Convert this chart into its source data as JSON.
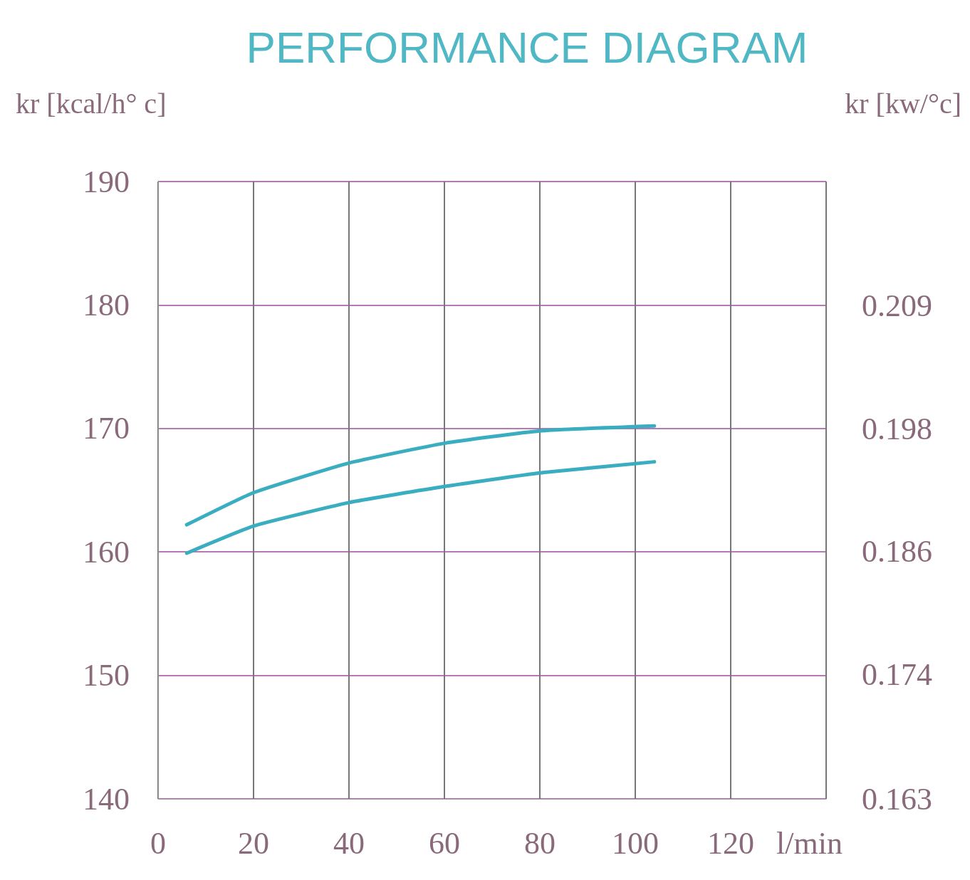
{
  "chart_data": {
    "type": "line",
    "title": "PERFORMANCE DIAGRAM",
    "xlabel": "l/min",
    "ylabel": "kr [kcal/h° c]",
    "y2label": "kr [kw/°c]",
    "xlim": [
      0,
      140
    ],
    "xticks": [
      0,
      20,
      40,
      60,
      80,
      100,
      120,
      {
        "value": 140,
        "label": null
      }
    ],
    "ylim": [
      140,
      190
    ],
    "yticks": [
      140,
      150,
      160,
      170,
      180,
      190
    ],
    "y2lim": [
      0.1628,
      0.221
    ],
    "y2ticks": [
      {
        "value": 0.1628,
        "label": "0.163"
      },
      {
        "value": 0.1745,
        "label": "0.174"
      },
      {
        "value": 0.1861,
        "label": "0.186"
      },
      {
        "value": 0.1977,
        "label": "0.198"
      },
      {
        "value": 0.2093,
        "label": "0.209"
      }
    ],
    "grid": true,
    "marker": "none",
    "line_style": "solid",
    "series": [
      {
        "color": "#3aaec0",
        "x": [
          6,
          20,
          40,
          60,
          80,
          104
        ],
        "values": [
          162.2,
          164.8,
          167.2,
          168.8,
          169.8,
          170.2
        ]
      },
      {
        "color": "#3aaec0",
        "x": [
          6,
          20,
          40,
          60,
          80,
          104
        ],
        "values": [
          159.9,
          162.1,
          164.0,
          165.3,
          166.4,
          167.3
        ]
      }
    ]
  }
}
